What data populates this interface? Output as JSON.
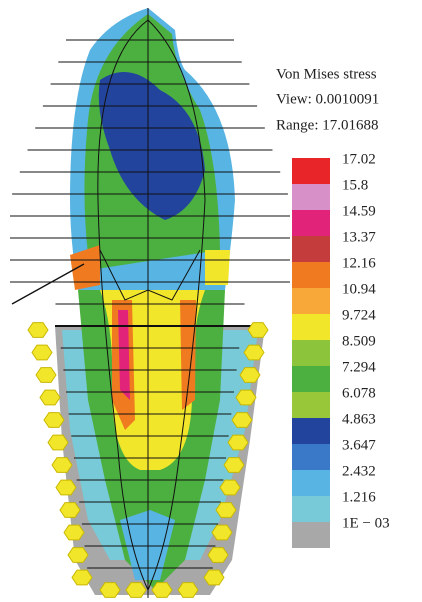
{
  "legend": {
    "title": "Von Mises stress",
    "view": "View: 0.0010091",
    "range": "Range: 17.01688",
    "entries": [
      {
        "label": "17.02",
        "color": "#e8262a"
      },
      {
        "label": "15.8",
        "color": "#d890c8"
      },
      {
        "label": "14.59",
        "color": "#e2237a"
      },
      {
        "label": "13.37",
        "color": "#c43c3c"
      },
      {
        "label": "12.16",
        "color": "#f07a20"
      },
      {
        "label": "10.94",
        "color": "#f8a838"
      },
      {
        "label": "9.724",
        "color": "#f2e62a"
      },
      {
        "label": "8.509",
        "color": "#8cc43c"
      },
      {
        "label": "7.294",
        "color": "#4cb040"
      },
      {
        "label": "6.078",
        "color": "#98c83a"
      },
      {
        "label": "4.863",
        "color": "#23449c"
      },
      {
        "label": "3.647",
        "color": "#3a78c8"
      },
      {
        "label": "2.432",
        "color": "#58b4e2"
      },
      {
        "label": "1.216",
        "color": "#78cad8"
      },
      {
        "label": "1E − 03",
        "color": "#a8a8a8"
      }
    ]
  }
}
